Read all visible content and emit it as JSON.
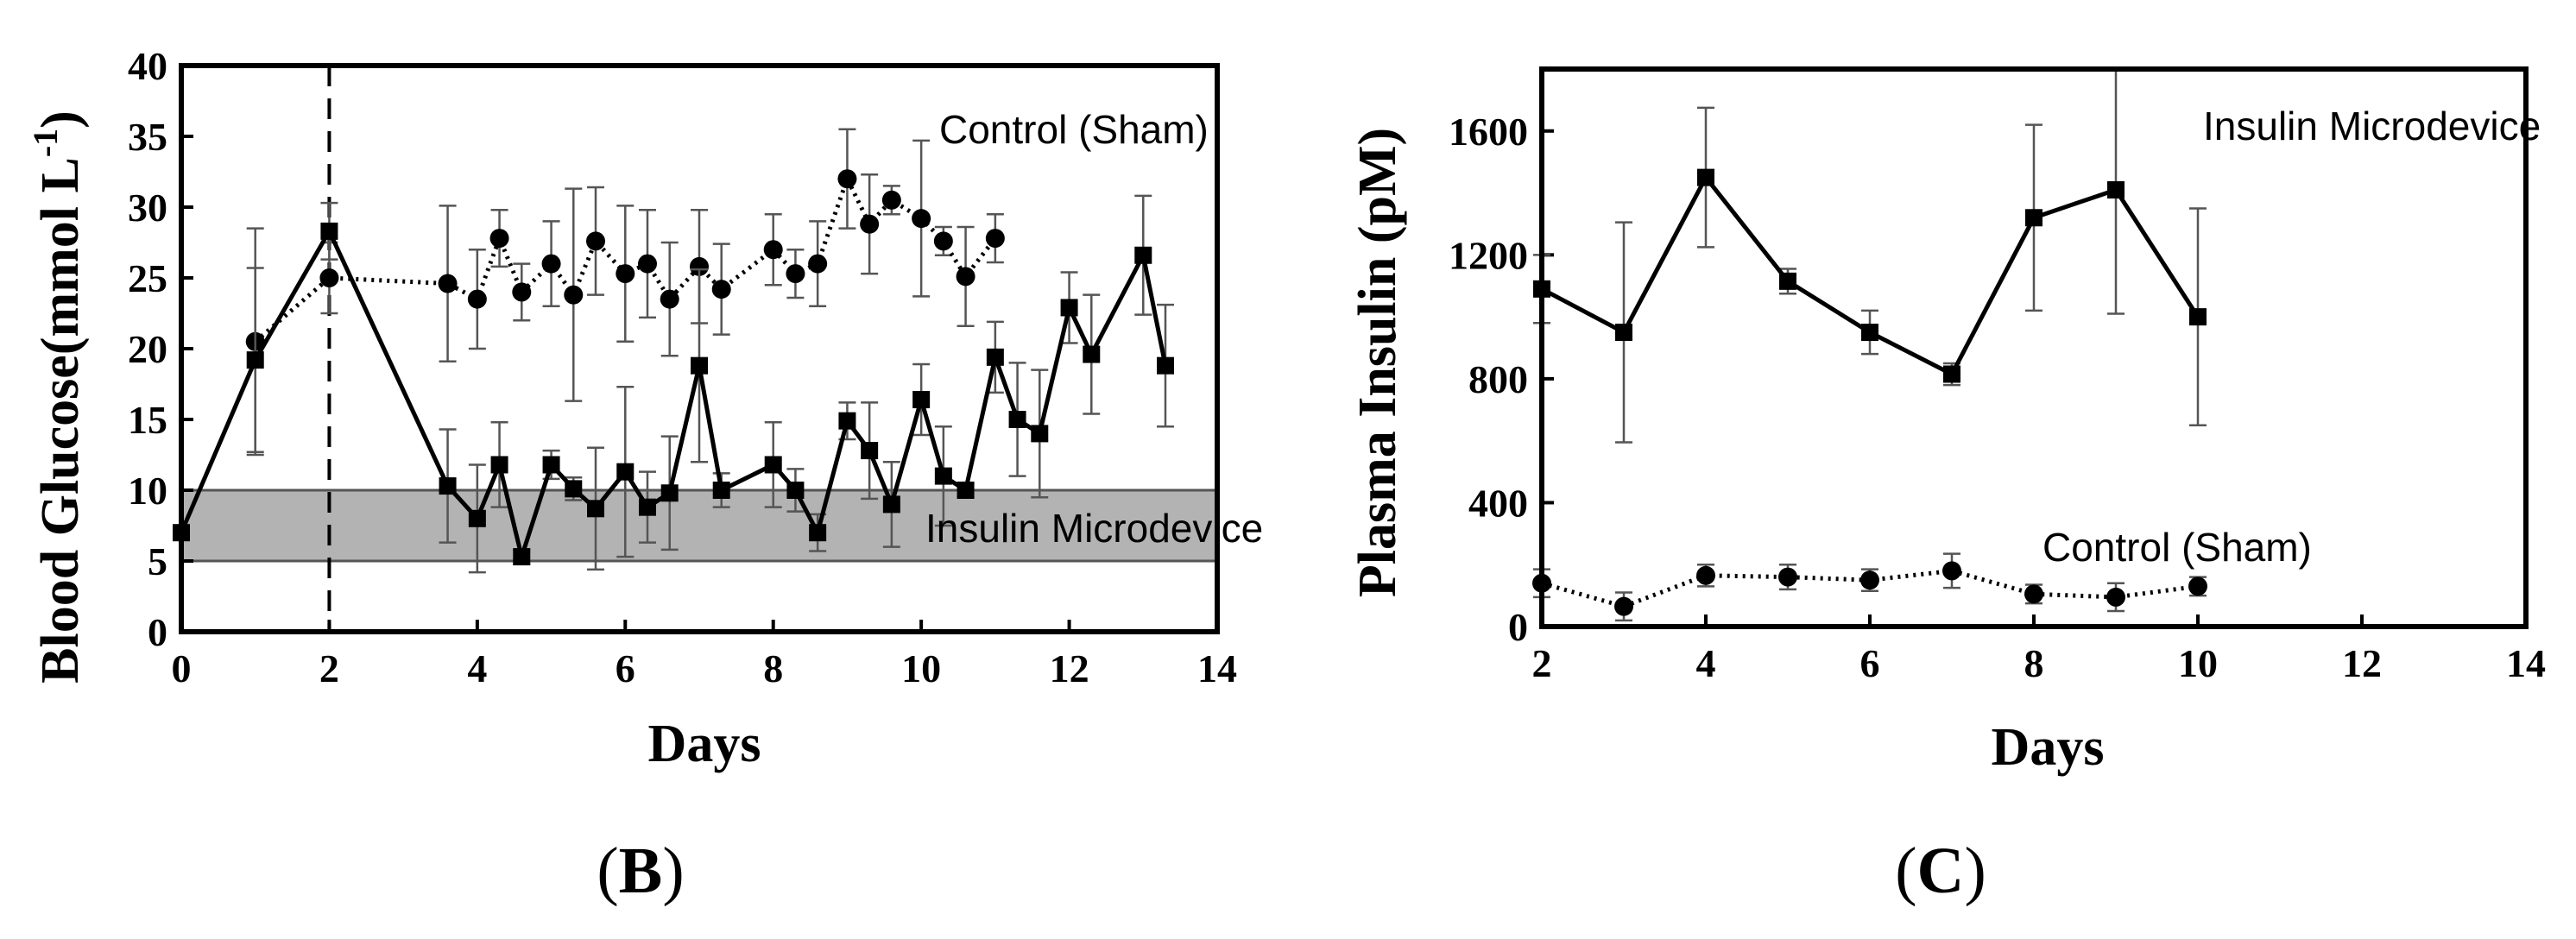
{
  "chart_data": [
    {
      "type": "line",
      "panel_label": "B",
      "xlabel": "Days",
      "ylabel_main": "Blood Glucose(mmol L",
      "ylabel_sup": "-1",
      "ylabel_close": ")",
      "xlim": [
        0,
        14
      ],
      "ylim": [
        0,
        40
      ],
      "xticks": [
        0,
        2,
        4,
        6,
        8,
        10,
        12,
        14
      ],
      "yticks": [
        0,
        5,
        10,
        15,
        20,
        25,
        30,
        35,
        40
      ],
      "normal_band": [
        5,
        10
      ],
      "vertical_marker_x": 2,
      "series": [
        {
          "name": "Control (Sham)",
          "marker": "circle",
          "line": "dotted",
          "x": [
            1,
            2,
            3.6,
            4,
            4.3,
            4.6,
            5,
            5.3,
            5.6,
            6,
            6.3,
            6.6,
            7,
            7.3,
            8,
            8.3,
            8.6,
            9,
            9.3,
            9.6,
            10,
            10.3,
            10.6,
            11
          ],
          "y": [
            20.5,
            25,
            24.6,
            23.5,
            27.8,
            24,
            26,
            23.8,
            27.6,
            25.3,
            26,
            23.5,
            25.8,
            24.2,
            27,
            25.3,
            26,
            32,
            28.8,
            30.5,
            29.2,
            27.6,
            25.1,
            27.8
          ],
          "err": [
            8,
            2.5,
            5.5,
            3.5,
            2,
            2,
            3,
            7.5,
            3.8,
            4.8,
            3.8,
            4,
            4,
            3.2,
            2.5,
            1.7,
            3,
            3.5,
            3.5,
            1,
            5.5,
            1,
            3.5,
            1.7
          ]
        },
        {
          "name": "Insulin Microdevice",
          "marker": "square",
          "line": "solid",
          "x": [
            0,
            1,
            2,
            3.6,
            4,
            4.3,
            4.6,
            5,
            5.3,
            5.6,
            6,
            6.3,
            6.6,
            7,
            7.3,
            8,
            8.3,
            8.6,
            9,
            9.3,
            9.6,
            10,
            10.3,
            10.6,
            11,
            11.3,
            11.6,
            12,
            12.3,
            13,
            13.3
          ],
          "y": [
            7,
            19.2,
            28.3,
            10.3,
            8,
            11.8,
            5.3,
            11.8,
            10.1,
            8.7,
            11.3,
            8.8,
            9.8,
            18.8,
            10,
            11.8,
            10,
            7,
            14.9,
            12.8,
            9,
            16.4,
            11,
            10,
            19.4,
            15,
            14,
            22.9,
            19.6,
            26.6,
            18.8
          ],
          "err": [
            0,
            6.5,
            2,
            4,
            3.8,
            3,
            0.5,
            1,
            0.8,
            4.3,
            6,
            2.5,
            4,
            6.8,
            1.2,
            3,
            1.5,
            1.3,
            1.3,
            3.4,
            3,
            2.5,
            3.5,
            0.5,
            2.5,
            4,
            4.5,
            2.5,
            4.2,
            4.2,
            4.3
          ]
        }
      ]
    },
    {
      "type": "line",
      "panel_label": "C",
      "xlabel": "Days",
      "ylabel": "Plasma Insulin (pM)",
      "xlim": [
        2,
        14
      ],
      "ylim": [
        0,
        1800
      ],
      "xticks": [
        2,
        4,
        6,
        8,
        10,
        12,
        14
      ],
      "yticks": [
        0,
        400,
        800,
        1200,
        1600
      ],
      "series": [
        {
          "name": "Insulin Microdevice",
          "marker": "square",
          "line": "solid",
          "x": [
            2,
            3,
            4,
            5,
            6,
            7,
            8,
            9,
            10
          ],
          "y": [
            1090,
            950,
            1450,
            1115,
            950,
            815,
            1320,
            1410,
            1000
          ],
          "err": [
            110,
            355,
            225,
            40,
            70,
            35,
            300,
            400,
            350
          ]
        },
        {
          "name": "Control (Sham)",
          "marker": "circle",
          "line": "dotted",
          "x": [
            2,
            3,
            4,
            5,
            6,
            7,
            8,
            9,
            10
          ],
          "y": [
            140,
            65,
            165,
            160,
            150,
            180,
            105,
            95,
            130
          ],
          "err": [
            45,
            45,
            35,
            40,
            35,
            55,
            30,
            45,
            30
          ]
        }
      ]
    }
  ]
}
